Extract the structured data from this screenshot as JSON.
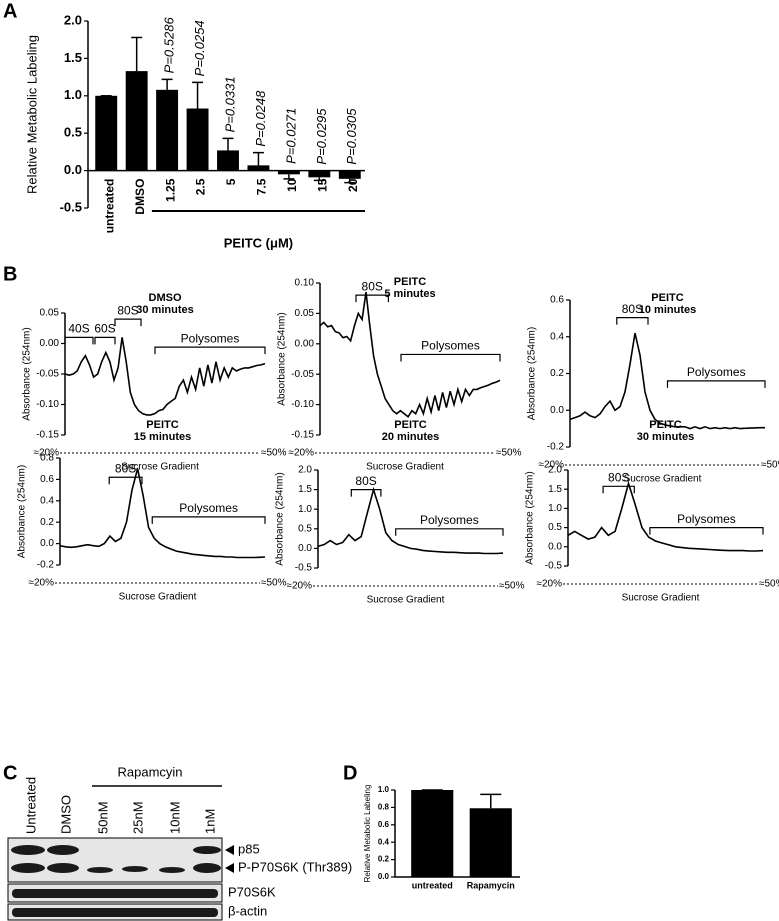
{
  "chart_data": [
    {
      "type": "bar",
      "panel": "A",
      "ylabel": "Relative Metabolic Labeling",
      "group_label": "PEITC (μM)",
      "categories": [
        "untreated",
        "DMSO",
        "1.25",
        "2.5",
        "5",
        "7.5",
        "10",
        "15",
        "20"
      ],
      "values": [
        1.0,
        1.33,
        1.08,
        0.83,
        0.27,
        0.07,
        -0.05,
        -0.09,
        -0.11
      ],
      "errors": [
        0,
        0.45,
        0.14,
        0.35,
        0.16,
        0.17,
        0.06,
        0.04,
        0.05
      ],
      "annotations": [
        "P=0.5286",
        "P=0.0254",
        "P=0.0331",
        "P=0.0248",
        "P=0.0271",
        "P=0.0295",
        "P=0.0305"
      ],
      "color": "#000000",
      "ylim": [
        -0.5,
        2.0
      ],
      "yticks": [
        -0.5,
        {
          "value": 0,
          "label": "0.0"
        },
        0.5,
        {
          "value": 1,
          "label": "1.0"
        },
        1.5,
        {
          "value": 2,
          "label": "2.0"
        }
      ]
    },
    {
      "type": "line",
      "panel": "B",
      "title": [
        "DMSO",
        "30 minutes"
      ],
      "ylabel": "Absorbance (254nm)",
      "xlabel": "Sucrose Gradient",
      "x_start_label": "≈20%",
      "x_end_label": "≈50%",
      "brackets": [
        "40S",
        "60S",
        "80S",
        "Polysomes"
      ],
      "color": "#000000",
      "values": [
        -0.05,
        -0.052,
        -0.05,
        -0.045,
        -0.03,
        -0.02,
        -0.035,
        -0.055,
        -0.05,
        -0.03,
        -0.015,
        -0.03,
        -0.06,
        -0.04,
        0.01,
        -0.03,
        -0.08,
        -0.1,
        -0.11,
        -0.115,
        -0.117,
        -0.117,
        -0.115,
        -0.11,
        -0.108,
        -0.1,
        -0.095,
        -0.09,
        -0.07,
        -0.06,
        -0.08,
        -0.055,
        -0.075,
        -0.04,
        -0.07,
        -0.035,
        -0.065,
        -0.03,
        -0.06,
        -0.04,
        -0.055,
        -0.04,
        -0.045,
        -0.042,
        -0.04,
        -0.04,
        -0.038,
        -0.036,
        -0.035,
        -0.033
      ],
      "ylim": [
        -0.15,
        0.05
      ],
      "yticks": [
        -0.15,
        {
          "value": -0.1,
          "label": "-0.10"
        },
        -0.05,
        {
          "value": 0,
          "label": "0.00"
        },
        0.05
      ]
    },
    {
      "type": "line",
      "title": [
        "PEITC",
        "5 minutes"
      ],
      "ylabel": "Absorbance (254nm)",
      "xlabel": "Sucrose Gradient",
      "x_start_label": "≈20%",
      "x_end_label": "≈50%",
      "brackets": [
        "80S",
        "Polysomes"
      ],
      "color": "#000000",
      "values": [
        0.03,
        0.035,
        0.028,
        0.03,
        0.02,
        0.018,
        0.01,
        0.012,
        0.005,
        0.03,
        0.05,
        0.04,
        0.085,
        0.03,
        -0.02,
        -0.05,
        -0.07,
        -0.09,
        -0.1,
        -0.11,
        -0.115,
        -0.11,
        -0.115,
        -0.12,
        -0.11,
        -0.115,
        -0.1,
        -0.115,
        -0.09,
        -0.112,
        -0.085,
        -0.11,
        -0.08,
        -0.105,
        -0.078,
        -0.1,
        -0.075,
        -0.095,
        -0.075,
        -0.085,
        -0.075,
        -0.075,
        -0.072,
        -0.07,
        -0.068,
        -0.065,
        -0.063,
        -0.06
      ],
      "ylim": [
        -0.15,
        0.1
      ],
      "yticks": [
        -0.15,
        {
          "value": -0.1,
          "label": "-0.10"
        },
        -0.05,
        {
          "value": 0,
          "label": "0.00"
        },
        0.05,
        {
          "value": 0.1,
          "label": "0.10"
        }
      ]
    },
    {
      "type": "line",
      "title": [
        "PEITC",
        "10 minutes"
      ],
      "ylabel": "Absorbance (254nm)",
      "xlabel": "Sucrose Gradient",
      "x_start_label": "≈20%",
      "x_end_label": "≈50%",
      "brackets": [
        "80S",
        "Polysomes"
      ],
      "color": "#000000",
      "values": [
        -0.05,
        -0.04,
        -0.03,
        -0.01,
        -0.03,
        -0.04,
        -0.02,
        0.02,
        0.05,
        0.0,
        0.02,
        0.1,
        0.25,
        0.42,
        0.3,
        0.1,
        0.0,
        -0.05,
        -0.07,
        -0.08,
        -0.085,
        -0.09,
        -0.09,
        -0.09,
        -0.1,
        -0.09,
        -0.1,
        -0.09,
        -0.1,
        -0.095,
        -0.1,
        -0.095,
        -0.1,
        -0.095,
        -0.1,
        -0.098,
        -0.097,
        -0.096,
        -0.095,
        -0.095
      ],
      "ylim": [
        -0.2,
        0.6
      ],
      "yticks": [
        -0.2,
        {
          "value": 0,
          "label": "0.0"
        },
        0.2,
        0.4,
        0.6
      ]
    },
    {
      "type": "line",
      "title": [
        "PEITC",
        "15 minutes"
      ],
      "ylabel": "Absorbance (254nm)",
      "xlabel": "Sucrose Gradient",
      "x_start_label": "≈20%",
      "x_end_label": "≈50%",
      "brackets": [
        "80S",
        "Polysomes"
      ],
      "color": "#000000",
      "values": [
        -0.02,
        -0.03,
        -0.035,
        -0.03,
        -0.02,
        -0.01,
        -0.02,
        -0.025,
        0.0,
        0.07,
        0.02,
        0.05,
        0.2,
        0.5,
        0.7,
        0.45,
        0.15,
        0.05,
        0.0,
        -0.03,
        -0.05,
        -0.07,
        -0.08,
        -0.09,
        -0.1,
        -0.105,
        -0.11,
        -0.115,
        -0.12,
        -0.12,
        -0.125,
        -0.125,
        -0.13,
        -0.13,
        -0.13,
        -0.13,
        -0.128,
        -0.125
      ],
      "ylim": [
        -0.2,
        0.8
      ],
      "yticks": [
        -0.2,
        {
          "value": 0,
          "label": "0.0"
        },
        0.2,
        0.4,
        0.6,
        0.8
      ]
    },
    {
      "type": "line",
      "title": [
        "PEITC",
        "20 minutes"
      ],
      "ylabel": "Absorbance (254nm)",
      "xlabel": "Sucrose Gradient",
      "x_start_label": "≈20%",
      "x_end_label": "≈50%",
      "brackets": [
        "80S",
        "Polysomes"
      ],
      "color": "#000000",
      "values": [
        0.05,
        0.1,
        0.2,
        0.1,
        0.15,
        0.35,
        0.2,
        0.3,
        0.9,
        1.5,
        1.0,
        0.4,
        0.2,
        0.1,
        0.05,
        0.0,
        -0.02,
        -0.05,
        -0.07,
        -0.08,
        -0.09,
        -0.1,
        -0.1,
        -0.11,
        -0.12,
        -0.12,
        -0.12,
        -0.13,
        -0.13,
        -0.13,
        -0.12
      ],
      "ylim": [
        -0.5,
        2.0
      ],
      "yticks": [
        -0.5,
        {
          "value": 0,
          "label": "0.0"
        },
        0.5,
        {
          "value": 1,
          "label": "1.0"
        },
        1.5,
        {
          "value": 2,
          "label": "2.0"
        }
      ]
    },
    {
      "type": "line",
      "title": [
        "PEITC",
        "30 minutes"
      ],
      "ylabel": "Absorbance (254nm)",
      "xlabel": "Sucrose Gradient",
      "x_start_label": "≈20%",
      "x_end_label": "≈50%",
      "brackets": [
        "80S",
        "Polysomes"
      ],
      "color": "#000000",
      "values": [
        0.3,
        0.4,
        0.3,
        0.2,
        0.25,
        0.5,
        0.3,
        0.4,
        1.0,
        1.65,
        1.1,
        0.5,
        0.25,
        0.15,
        0.1,
        0.05,
        0.0,
        -0.02,
        -0.04,
        -0.05,
        -0.06,
        -0.07,
        -0.08,
        -0.09,
        -0.1,
        -0.1,
        -0.1,
        -0.11,
        -0.11,
        -0.1
      ],
      "ylim": [
        -0.5,
        2.0
      ],
      "yticks": [
        -0.5,
        {
          "value": 0,
          "label": "0.0"
        },
        0.5,
        {
          "value": 1,
          "label": "1.0"
        },
        1.5,
        {
          "value": 2,
          "label": "2.0"
        }
      ]
    },
    {
      "type": "bar",
      "panel": "D",
      "ylabel": "Relative Metabolic Labeling",
      "categories": [
        "untreated",
        "Rapamycin"
      ],
      "values": [
        1.0,
        0.79
      ],
      "errors": [
        0,
        0.16
      ],
      "color": "#000000",
      "ylim": [
        0,
        1.0
      ],
      "yticks": [
        {
          "value": 0,
          "label": "0.0"
        },
        0.2,
        0.4,
        0.6,
        0.8,
        {
          "value": 1,
          "label": "1.0"
        }
      ]
    }
  ],
  "blot": {
    "panel": "C",
    "treatment": "Rapamcyin",
    "lanes": [
      "Untreated",
      "DMSO",
      "50nM",
      "25nM",
      "10nM",
      "1nM"
    ],
    "bands": [
      "p85",
      "P-P70S6K (Thr389)",
      "P70S6K",
      "β-actin"
    ]
  }
}
